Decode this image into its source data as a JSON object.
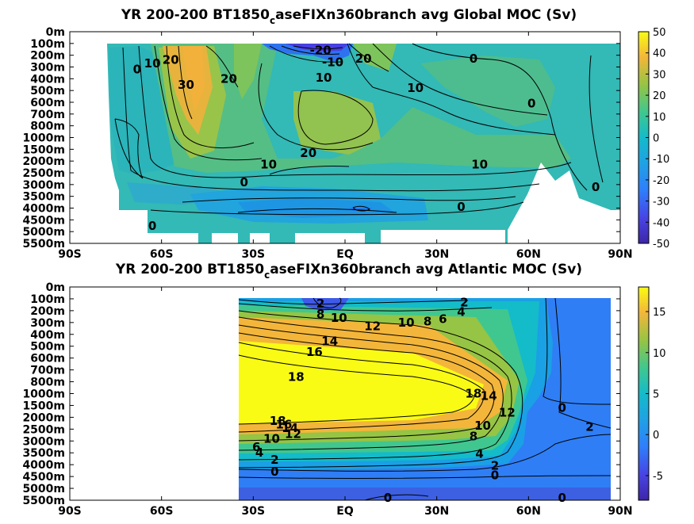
{
  "chart_data": [
    {
      "type": "heatmap",
      "title": "YR 200-200 BT1850",
      "title_sub": "c",
      "title_rest": "aseFIXn360branch avg  Global MOC (Sv)",
      "x_ticks": [
        "90S",
        "60S",
        "30S",
        "EQ",
        "30N",
        "60N",
        "90N"
      ],
      "y_ticks": [
        "0m",
        "100m",
        "200m",
        "300m",
        "400m",
        "500m",
        "600m",
        "700m",
        "800m",
        "1000m",
        "1500m",
        "2000m",
        "2500m",
        "3000m",
        "3500m",
        "4000m",
        "4500m",
        "5000m",
        "5500m"
      ],
      "colorbar_ticks": [
        "50",
        "40",
        "30",
        "20",
        "10",
        "0",
        "-10",
        "-20",
        "-30",
        "-40",
        "-50"
      ],
      "clim": [
        -50,
        50
      ],
      "colormap": "parula",
      "contour_labels": [
        {
          "text": "0",
          "lat": -68,
          "depth_index": 3.2
        },
        {
          "text": "10",
          "lat": -63,
          "depth_index": 2.7
        },
        {
          "text": "20",
          "lat": -57,
          "depth_index": 2.4
        },
        {
          "text": "30",
          "lat": -52,
          "depth_index": 4.5
        },
        {
          "text": "20",
          "lat": -38,
          "depth_index": 4.0
        },
        {
          "text": "-20",
          "lat": -8,
          "depth_index": 1.6
        },
        {
          "text": "-10",
          "lat": -4,
          "depth_index": 2.6
        },
        {
          "text": "10",
          "lat": -7,
          "depth_index": 3.9
        },
        {
          "text": "20",
          "lat": 6,
          "depth_index": 2.3
        },
        {
          "text": "0",
          "lat": 42,
          "depth_index": 2.3
        },
        {
          "text": "10",
          "lat": 23,
          "depth_index": 4.8
        },
        {
          "text": "0",
          "lat": 61,
          "depth_index": 6.1
        },
        {
          "text": "20",
          "lat": -12,
          "depth_index": 10.3
        },
        {
          "text": "10",
          "lat": -25,
          "depth_index": 11.3
        },
        {
          "text": "10",
          "lat": 44,
          "depth_index": 11.3
        },
        {
          "text": "0",
          "lat": -33,
          "depth_index": 12.8
        },
        {
          "text": "0",
          "lat": 38,
          "depth_index": 14.9
        },
        {
          "text": "0",
          "lat": 82,
          "depth_index": 13.2
        },
        {
          "text": "0",
          "lat": -63,
          "depth_index": 16.5
        }
      ],
      "values_sv": [
        {
          "lat": -52,
          "depth": "500m",
          "value": 35
        },
        {
          "lat": -8,
          "depth": "100m",
          "value": -30
        },
        {
          "lat": 0,
          "depth": "1000m",
          "value": 20
        },
        {
          "lat": 30,
          "depth": "1000m",
          "value": 15
        },
        {
          "lat": 0,
          "depth": "4000m",
          "value": -8
        },
        {
          "lat": -70,
          "depth": "1500m",
          "value": -3
        }
      ]
    },
    {
      "type": "heatmap",
      "title": "YR 200-200 BT1850",
      "title_sub": "c",
      "title_rest": "aseFIXn360branch avg  Atlantic MOC (Sv)",
      "x_ticks": [
        "90S",
        "60S",
        "30S",
        "EQ",
        "30N",
        "60N",
        "90N"
      ],
      "y_ticks": [
        "0m",
        "100m",
        "200m",
        "300m",
        "400m",
        "500m",
        "600m",
        "700m",
        "800m",
        "1000m",
        "1500m",
        "2000m",
        "2500m",
        "3000m",
        "3500m",
        "4000m",
        "4500m",
        "5000m",
        "5500m"
      ],
      "colorbar_ticks": [
        "15",
        "10",
        "5",
        "0",
        "-5"
      ],
      "clim": [
        -8,
        18
      ],
      "colormap": "parula",
      "contour_labels": [
        {
          "text": "2",
          "lat": -8,
          "depth_index": 1.4
        },
        {
          "text": "8",
          "lat": -8,
          "depth_index": 2.3
        },
        {
          "text": "10",
          "lat": -2,
          "depth_index": 2.6
        },
        {
          "text": "12",
          "lat": 9,
          "depth_index": 3.3
        },
        {
          "text": "10",
          "lat": 20,
          "depth_index": 3.0
        },
        {
          "text": "8",
          "lat": 27,
          "depth_index": 2.9
        },
        {
          "text": "6",
          "lat": 32,
          "depth_index": 2.7
        },
        {
          "text": "4",
          "lat": 38,
          "depth_index": 2.1
        },
        {
          "text": "2",
          "lat": 39,
          "depth_index": 1.3
        },
        {
          "text": "14",
          "lat": -5,
          "depth_index": 4.6
        },
        {
          "text": "16",
          "lat": -10,
          "depth_index": 5.5
        },
        {
          "text": "18",
          "lat": -16,
          "depth_index": 7.6
        },
        {
          "text": "18",
          "lat": 42,
          "depth_index": 9.0
        },
        {
          "text": "14",
          "lat": 47,
          "depth_index": 9.2
        },
        {
          "text": "12",
          "lat": 53,
          "depth_index": 10.6
        },
        {
          "text": "10",
          "lat": 45,
          "depth_index": 11.7
        },
        {
          "text": "8",
          "lat": 42,
          "depth_index": 12.6
        },
        {
          "text": "4",
          "lat": 44,
          "depth_index": 14.1
        },
        {
          "text": "18",
          "lat": -22,
          "depth_index": 11.3
        },
        {
          "text": "16",
          "lat": -20,
          "depth_index": 11.6
        },
        {
          "text": "14",
          "lat": -18,
          "depth_index": 11.9
        },
        {
          "text": "12",
          "lat": -17,
          "depth_index": 12.4
        },
        {
          "text": "10",
          "lat": -24,
          "depth_index": 12.8
        },
        {
          "text": "6",
          "lat": -29,
          "depth_index": 13.5
        },
        {
          "text": "4",
          "lat": -28,
          "depth_index": 14.0
        },
        {
          "text": "2",
          "lat": -23,
          "depth_index": 14.6
        },
        {
          "text": "0",
          "lat": -23,
          "depth_index": 15.6
        },
        {
          "text": "2",
          "lat": 49,
          "depth_index": 15.1
        },
        {
          "text": "0",
          "lat": 49,
          "depth_index": 15.9
        },
        {
          "text": "0",
          "lat": 71,
          "depth_index": 10.2
        },
        {
          "text": "2",
          "lat": 80,
          "depth_index": 11.8
        },
        {
          "text": "0",
          "lat": 14,
          "depth_index": 17.8
        },
        {
          "text": "0",
          "lat": 71,
          "depth_index": 17.8
        }
      ],
      "values_sv": [
        {
          "lat": 10,
          "depth": "1000m",
          "value": 19
        },
        {
          "lat": 55,
          "depth": "1000m",
          "value": 14
        },
        {
          "lat": 80,
          "depth": "1500m",
          "value": -1
        },
        {
          "lat": 0,
          "depth": "5000m",
          "value": -2
        },
        {
          "lat": -8,
          "depth": "100m",
          "value": -6
        }
      ]
    }
  ]
}
